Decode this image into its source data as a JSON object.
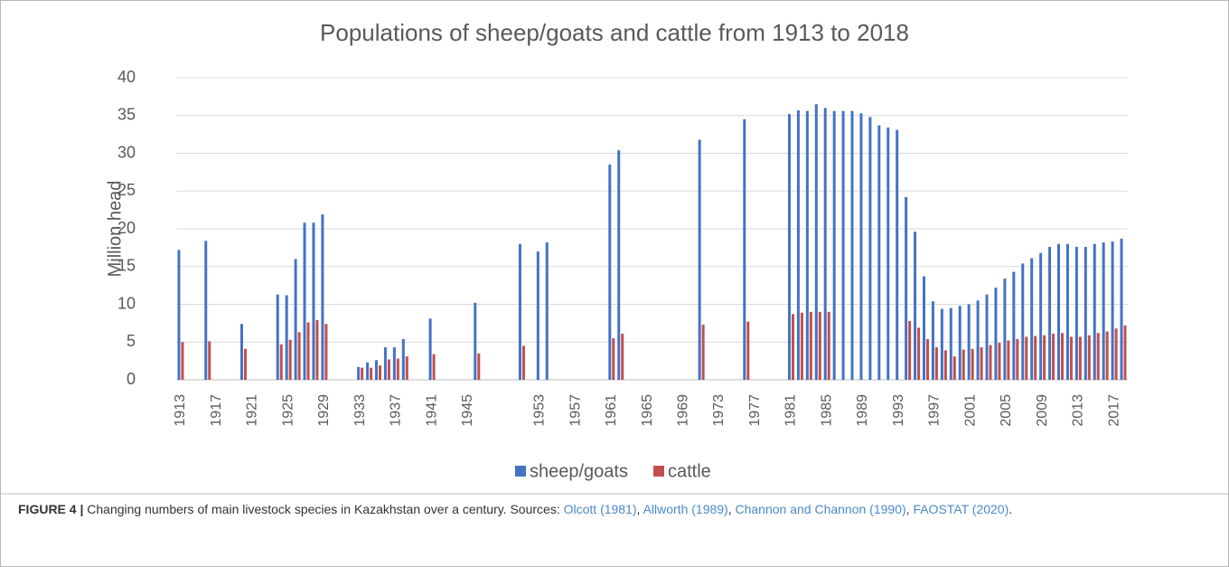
{
  "chart_data": {
    "type": "bar",
    "title": "Populations of sheep/goats and cattle from 1913 to 2018",
    "y_label": "Million head",
    "categories": [
      "1913",
      null,
      null,
      null,
      "1917",
      null,
      null,
      null,
      "1921",
      null,
      null,
      null,
      "1925",
      null,
      null,
      null,
      "1929",
      null,
      null,
      null,
      "1933",
      null,
      null,
      null,
      "1937",
      null,
      null,
      null,
      "1941",
      null,
      null,
      null,
      "1945",
      null,
      null,
      null,
      null,
      null,
      null,
      null,
      "1953",
      null,
      null,
      null,
      "1957",
      null,
      null,
      null,
      "1961",
      null,
      null,
      null,
      "1965",
      null,
      null,
      null,
      "1969",
      null,
      null,
      null,
      "1973",
      null,
      null,
      null,
      "1977",
      null,
      null,
      null,
      "1981",
      null,
      null,
      null,
      "1985",
      null,
      null,
      null,
      "1989",
      null,
      null,
      null,
      "1993",
      null,
      null,
      null,
      "1997",
      null,
      null,
      null,
      "2001",
      null,
      null,
      null,
      "2005",
      null,
      null,
      null,
      "2009",
      null,
      null,
      null,
      "2013",
      null,
      null,
      null,
      "2017",
      null
    ],
    "series": [
      {
        "name": "sheep/goats",
        "color": "#4472c4",
        "values": [
          17.2,
          null,
          null,
          18.4,
          null,
          null,
          null,
          7.4,
          null,
          null,
          null,
          11.3,
          11.2,
          16.0,
          20.8,
          20.8,
          21.9,
          null,
          null,
          null,
          1.7,
          2.3,
          2.6,
          4.3,
          4.3,
          5.4,
          null,
          null,
          8.1,
          null,
          null,
          null,
          null,
          10.2,
          null,
          null,
          null,
          null,
          18.0,
          null,
          17.0,
          18.2,
          null,
          null,
          null,
          null,
          null,
          null,
          28.5,
          30.4,
          null,
          null,
          null,
          null,
          null,
          null,
          null,
          null,
          31.8,
          null,
          null,
          null,
          null,
          34.5,
          null,
          null,
          null,
          null,
          35.2,
          35.7,
          35.6,
          36.5,
          36.0,
          35.6,
          35.6,
          35.6,
          35.3,
          34.8,
          33.7,
          33.4,
          33.1,
          24.2,
          19.6,
          13.7,
          10.4,
          9.4,
          9.5,
          9.8,
          10.0,
          10.5,
          11.3,
          12.2,
          13.4,
          14.3,
          15.4,
          16.1,
          16.8,
          17.6,
          18.0,
          18.0,
          17.6,
          17.6,
          18.0,
          18.2,
          18.3,
          18.7
        ]
      },
      {
        "name": "cattle",
        "color": "#c0504d",
        "values": [
          5.0,
          null,
          null,
          5.1,
          null,
          null,
          null,
          4.1,
          null,
          null,
          null,
          4.7,
          5.3,
          6.3,
          7.6,
          7.9,
          7.4,
          null,
          null,
          null,
          1.6,
          1.6,
          1.9,
          2.7,
          2.8,
          3.1,
          null,
          null,
          3.4,
          null,
          null,
          null,
          null,
          3.5,
          null,
          null,
          null,
          null,
          4.5,
          null,
          null,
          null,
          null,
          null,
          null,
          null,
          null,
          null,
          5.5,
          6.1,
          null,
          null,
          null,
          null,
          null,
          null,
          null,
          null,
          7.3,
          null,
          null,
          null,
          null,
          7.7,
          null,
          null,
          null,
          null,
          8.7,
          8.9,
          9.0,
          9.0,
          9.0,
          null,
          null,
          null,
          null,
          null,
          null,
          null,
          null,
          7.8,
          6.9,
          5.4,
          4.3,
          3.9,
          3.1,
          4.0,
          4.1,
          4.3,
          4.6,
          4.9,
          5.2,
          5.4,
          5.7,
          5.8,
          5.9,
          6.1,
          6.2,
          5.7,
          5.7,
          5.9,
          6.2,
          6.4,
          6.8,
          7.2
        ]
      }
    ],
    "ylim": [
      0,
      40
    ],
    "yticks": [
      0,
      5,
      10,
      15,
      20,
      25,
      30,
      35,
      40
    ],
    "grid": true,
    "legend": "bottom"
  },
  "caption": {
    "label": "FIGURE 4 |",
    "parts": [
      {
        "text": " Changing numbers of main livestock species in Kazakhstan over a century. Sources: "
      },
      {
        "text": "Olcott (1981)",
        "link": true
      },
      {
        "text": ", "
      },
      {
        "text": "Allworth (1989)",
        "link": true
      },
      {
        "text": ", "
      },
      {
        "text": "Channon and Channon (1990)",
        "link": true
      },
      {
        "text": ", "
      },
      {
        "text": "FAOSTAT (2020)",
        "link": true
      },
      {
        "text": "."
      }
    ]
  }
}
